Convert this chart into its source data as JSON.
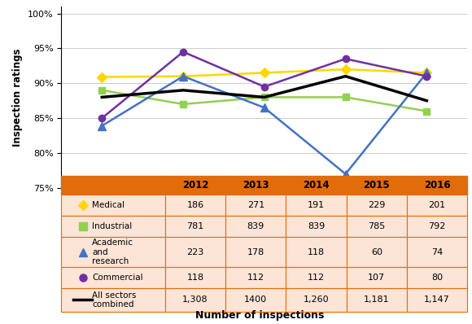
{
  "years": [
    2012,
    2013,
    2014,
    2015,
    2016
  ],
  "medical_exact": [
    90.9,
    91.0,
    91.5,
    92.0,
    91.5
  ],
  "industrial_exact": [
    89.0,
    87.0,
    88.0,
    88.0,
    86.0
  ],
  "academic_exact": [
    83.9,
    91.0,
    86.5,
    77.0,
    91.5
  ],
  "commercial_exact": [
    85.0,
    94.5,
    89.5,
    93.5,
    91.0
  ],
  "all_sectors_exact": [
    88.0,
    89.0,
    88.0,
    91.0,
    87.5
  ],
  "medical_color": "#FFD700",
  "industrial_color": "#92D050",
  "academic_color": "#4472C4",
  "commercial_color": "#7030A0",
  "all_sectors_color": "#000000",
  "rows_labels": [
    "Medical",
    "Industrial",
    "Academic\nand\nresearch",
    "Commercial",
    "All sectors\ncombined"
  ],
  "rows_data": [
    [
      "186",
      "271",
      "191",
      "229",
      "201"
    ],
    [
      "781",
      "839",
      "839",
      "785",
      "792"
    ],
    [
      "223",
      "178",
      "118",
      "60",
      "74"
    ],
    [
      "118",
      "112",
      "112",
      "107",
      "80"
    ],
    [
      "1,308",
      "1400",
      "1,260",
      "1,181",
      "1,147"
    ]
  ],
  "ylabel": "Inspection ratings",
  "xlabel": "Number of inspections",
  "ylim": [
    75,
    101
  ],
  "yticks": [
    75,
    80,
    85,
    90,
    95,
    100
  ],
  "ytick_labels": [
    "75%",
    "80%",
    "85%",
    "90%",
    "95%",
    "100%"
  ],
  "table_header_bg": "#E26B0A",
  "table_row_bg": "#FCE4D6",
  "table_border_color": "#E26B0A",
  "chart_bg": "#FFFFFF",
  "grid_color": "#CCCCCC",
  "header_years": [
    "2012",
    "2013",
    "2014",
    "2015",
    "2016"
  ]
}
